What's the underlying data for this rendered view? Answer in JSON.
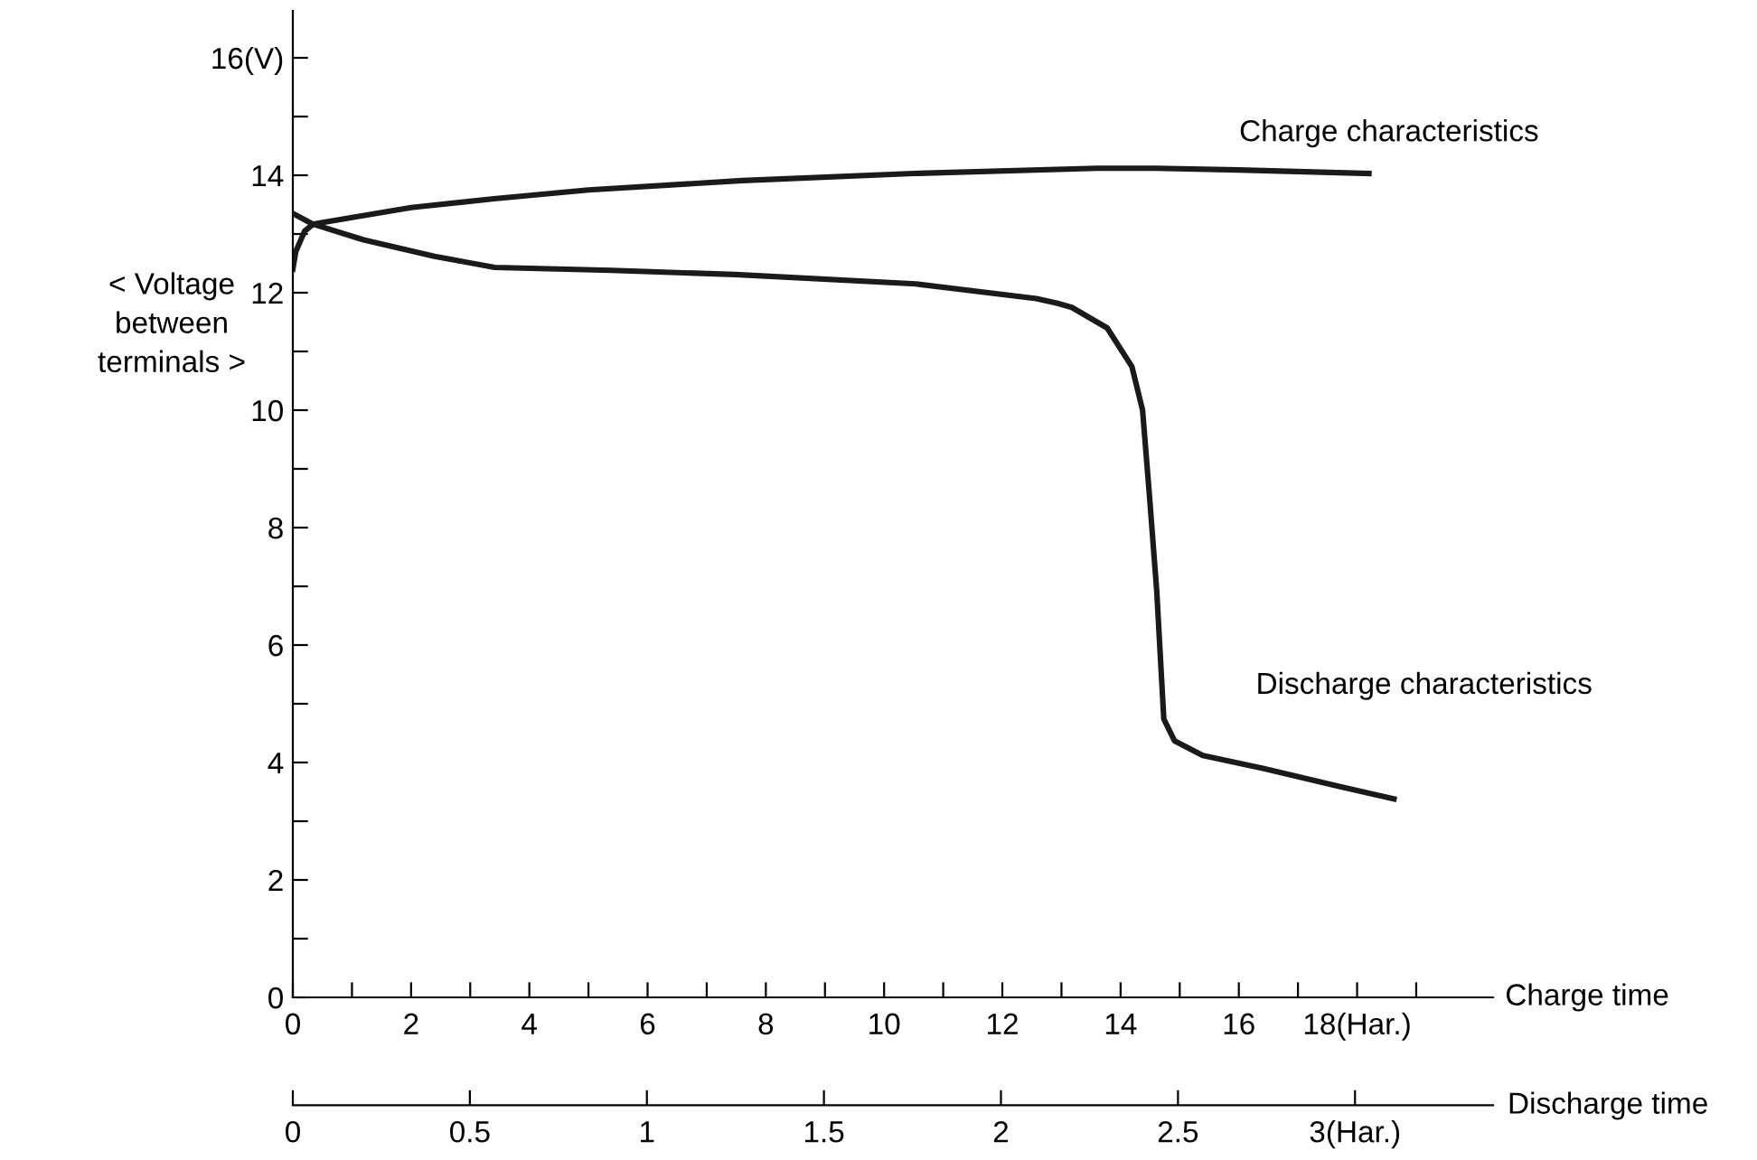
{
  "chart_data": {
    "type": "line",
    "xlabel": "Charge time",
    "x2label": "Discharge time",
    "ylabel": "< Voltage\nbetween\nterminals >",
    "xlim": [
      0,
      20.3
    ],
    "ylim": [
      0,
      16.8
    ],
    "x2lim": [
      0,
      3.39
    ],
    "xticks": [
      0,
      {
        "value": 1,
        "label": null
      },
      2,
      {
        "value": 3,
        "label": null
      },
      4,
      {
        "value": 5,
        "label": null
      },
      6,
      {
        "value": 7,
        "label": null
      },
      8,
      {
        "value": 9,
        "label": null
      },
      10,
      {
        "value": 11,
        "label": null
      },
      12,
      {
        "value": 13,
        "label": null
      },
      14,
      {
        "value": 15,
        "label": null
      },
      16,
      {
        "value": 17,
        "label": null
      },
      {
        "value": 18,
        "label": "18(Har.)"
      },
      {
        "value": 19,
        "label": null
      }
    ],
    "x2ticks": [
      0,
      0.5,
      1,
      1.5,
      2,
      2.5,
      {
        "value": 3,
        "label": "3(Har.)"
      }
    ],
    "yticks": [
      0,
      {
        "value": 1,
        "label": null
      },
      2,
      {
        "value": 3,
        "label": null
      },
      4,
      {
        "value": 5,
        "label": null
      },
      6,
      {
        "value": 7,
        "label": null
      },
      8,
      {
        "value": 9,
        "label": null
      },
      10,
      {
        "value": 11,
        "label": null
      },
      12,
      {
        "value": 13,
        "label": null
      },
      14,
      {
        "value": 15,
        "label": null
      },
      {
        "value": 16,
        "label": "16(V)"
      }
    ],
    "grid": false,
    "legend": false,
    "marker": "none",
    "line_style": "solid",
    "series": [
      {
        "name": "Charge characteristics",
        "color": "#1a1a1a",
        "x": [
          0,
          0.05,
          0.2,
          0.35,
          1,
          2,
          3.4,
          5,
          7.6,
          10.5,
          13.6,
          14.6,
          16,
          18.2
        ],
        "values": [
          12.4,
          12.7,
          13.05,
          13.17,
          13.28,
          13.45,
          13.6,
          13.75,
          13.91,
          14.03,
          14.12,
          14.12,
          14.09,
          14.03
        ]
      },
      {
        "name": "Discharge characteristics",
        "color": "#1a1a1a",
        "axis": "x2",
        "x": [
          0,
          0.056,
          0.2,
          0.4,
          0.57,
          0.9,
          1.25,
          1.76,
          2.1,
          2.16,
          2.2,
          2.3,
          2.37,
          2.4,
          2.42,
          2.44,
          2.46,
          2.49,
          2.57,
          2.74,
          2.95,
          3.11
        ],
        "values": [
          13.35,
          13.17,
          12.9,
          12.62,
          12.43,
          12.38,
          12.31,
          12.15,
          11.9,
          11.82,
          11.75,
          11.4,
          10.74,
          10.0,
          8.5,
          6.92,
          4.74,
          4.37,
          4.12,
          3.9,
          3.6,
          3.38
        ]
      }
    ]
  }
}
